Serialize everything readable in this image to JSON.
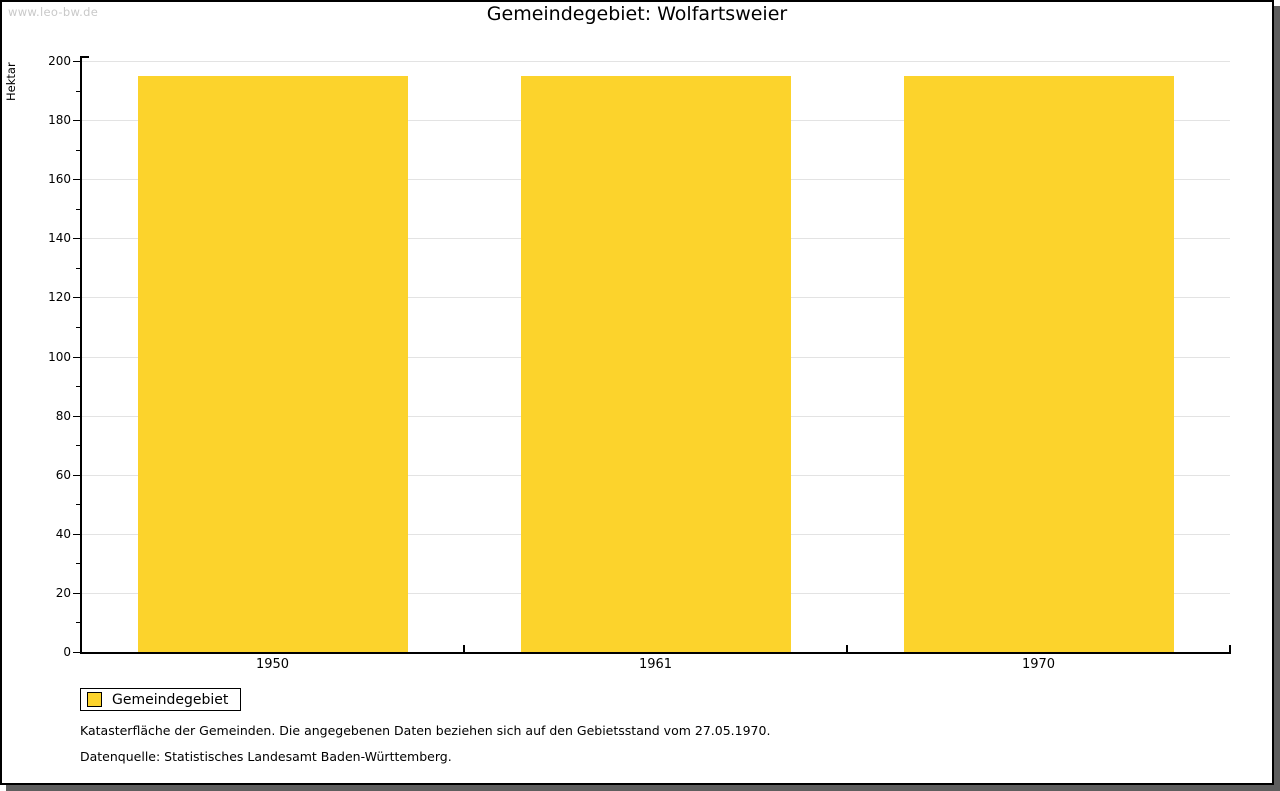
{
  "watermark": "www.leo-bw.de",
  "header": {
    "title": "Gemeindegebiet: Wolfartsweier"
  },
  "chart_data": {
    "type": "bar",
    "title": "Gemeindegebiet: Wolfartsweier",
    "categories": [
      "1950",
      "1961",
      "1970"
    ],
    "series": [
      {
        "name": "Gemeindegebiet",
        "values": [
          195,
          195,
          195
        ]
      }
    ],
    "xlabel": "",
    "ylabel": "Hektar",
    "ylim": [
      0,
      200
    ],
    "ytick_step": 20,
    "yminor_step": 10,
    "ytick_labels": [
      "0",
      "20",
      "40",
      "60",
      "80",
      "100",
      "120",
      "140",
      "160",
      "180",
      "200"
    ],
    "grid": true,
    "gridline_color": "#E3E3E3",
    "bar_color": "#FCD32C",
    "legend_position": "bottom-left"
  },
  "legend": {
    "label": "Gemeindegebiet",
    "swatch_color": "#FCD32C"
  },
  "footer": {
    "line1": "Katasterfläche der Gemeinden. Die angegebenen Daten beziehen sich auf den Gebietsstand vom 27.05.1970.",
    "line2": "Datenquelle: Statistisches Landesamt Baden-Württemberg."
  }
}
